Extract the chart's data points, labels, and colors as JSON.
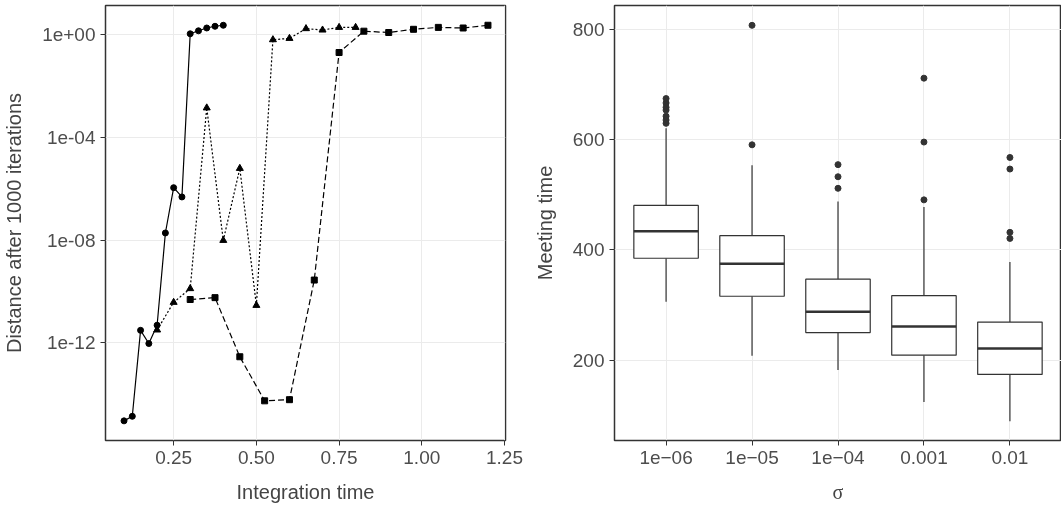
{
  "chart_data": [
    {
      "type": "line",
      "xlabel": "Integration time",
      "ylabel": "Distance after 1000 iterations",
      "log": "y",
      "grid": true,
      "xlim": [
        0.044,
        1.253
      ],
      "xticks": [
        0.25,
        {
          "value": 0.5,
          "label": "0.50"
        },
        0.75,
        {
          "value": 1,
          "label": "1.00"
        },
        1.25
      ],
      "ylim": [
        1.6e-16,
        13.5
      ],
      "yticks": [
        {
          "value": 1e-12,
          "label": "1e-12"
        },
        {
          "value": 1e-08,
          "label": "1e-08"
        },
        {
          "value": 0.0001,
          "label": "1e-04"
        },
        {
          "value": 1,
          "label": "1e+00"
        }
      ],
      "series": [
        {
          "color": "#000000",
          "marker": "circle",
          "line_style": "solid",
          "x": [
            0.1,
            0.125,
            0.15,
            0.175,
            0.2,
            0.225,
            0.25,
            0.275,
            0.3,
            0.325,
            0.35,
            0.375,
            0.4
          ],
          "values": [
            9.3e-16,
            1.4e-15,
            3.1e-12,
            9.5e-13,
            4.9e-12,
            1.9e-08,
            1.1e-06,
            4.8e-07,
            1.07,
            1.4,
            1.8,
            2.1,
            2.3
          ]
        },
        {
          "color": "#000000",
          "marker": "triangle",
          "line_style": "dotted",
          "x": [
            0.2,
            0.25,
            0.3,
            0.35,
            0.4,
            0.45,
            0.5,
            0.55,
            0.6,
            0.65,
            0.7,
            0.75,
            0.8
          ],
          "values": [
            3.2e-12,
            3.8e-11,
            1.3e-10,
            0.0014,
            9.8e-09,
            6.2e-06,
            2.9e-11,
            0.63,
            0.71,
            1.7,
            1.5,
            1.9,
            1.9
          ]
        },
        {
          "color": "#000000",
          "marker": "square",
          "line_style": "dashed",
          "x": [
            0.3,
            0.375,
            0.45,
            0.525,
            0.6,
            0.675,
            0.75,
            0.825,
            0.9,
            0.975,
            1.05,
            1.125,
            1.2
          ],
          "values": [
            4.9e-11,
            5.8e-11,
            2.9e-13,
            5.6e-15,
            6.2e-15,
            2.8e-10,
            0.2,
            1.35,
            1.2,
            1.6,
            1.9,
            1.8,
            2.3
          ]
        }
      ]
    },
    {
      "type": "box",
      "xlabel": "σ",
      "ylabel": "Meeting time",
      "grid": true,
      "categories": [
        "1e−06",
        "1e−05",
        "1e−04",
        "0.001",
        "0.01"
      ],
      "ylim": [
        54,
        844
      ],
      "yticks": [
        200,
        400,
        600,
        800
      ],
      "boxes": [
        {
          "low": 306,
          "q1": 385,
          "median": 434,
          "q3": 481,
          "high": 621,
          "outliers": [
            630,
            636,
            643,
            654,
            659,
            667,
            675
          ]
        },
        {
          "low": 208,
          "q1": 316,
          "median": 375,
          "q3": 426,
          "high": 554,
          "outliers": [
            591,
            808
          ]
        },
        {
          "low": 182,
          "q1": 250,
          "median": 288,
          "q3": 347,
          "high": 488,
          "outliers": [
            512,
            533,
            555
          ]
        },
        {
          "low": 124,
          "q1": 209,
          "median": 261,
          "q3": 317,
          "high": 478,
          "outliers": [
            491,
            596,
            712
          ]
        },
        {
          "low": 89,
          "q1": 174,
          "median": 221,
          "q3": 269,
          "high": 378,
          "outliers": [
            421,
            432,
            547,
            568
          ]
        }
      ]
    }
  ]
}
